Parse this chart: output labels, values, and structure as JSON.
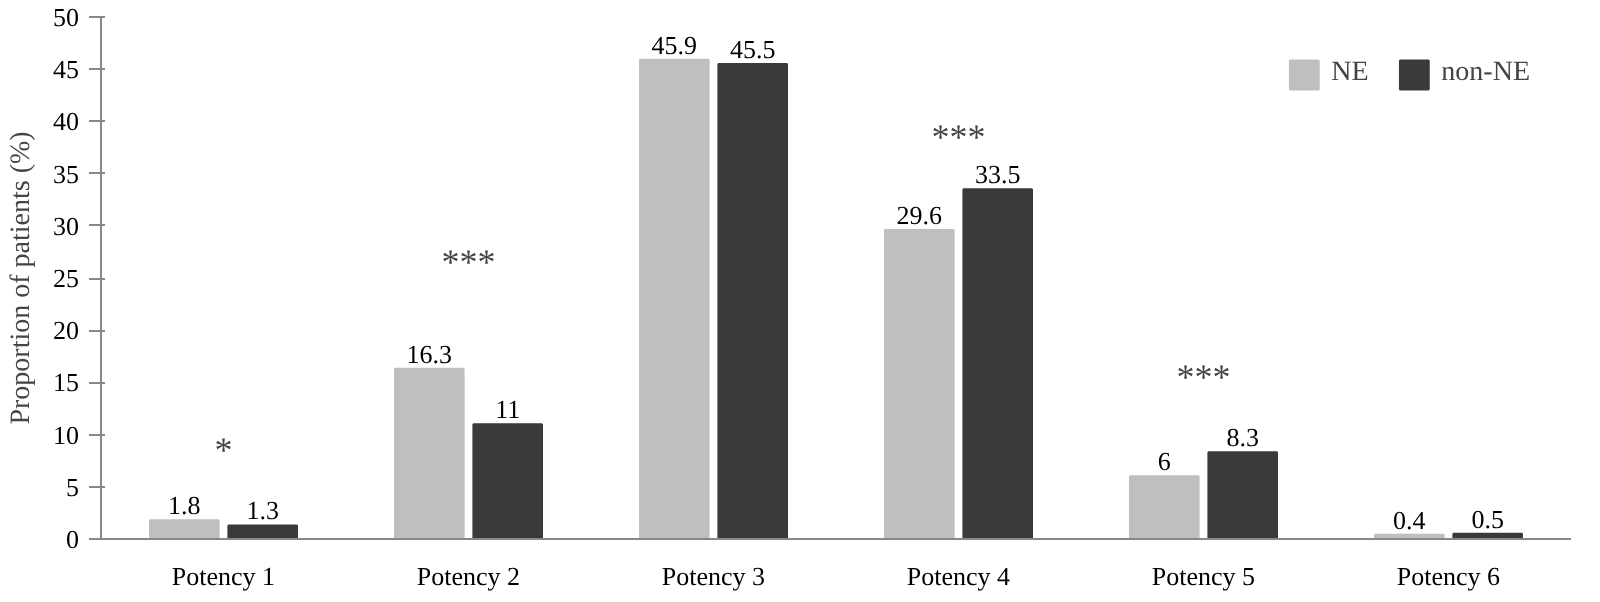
{
  "chart_data": {
    "type": "bar",
    "ylabel": "Proportion of patients (%)",
    "categories": [
      "Potency 1",
      "Potency 2",
      "Potency 3",
      "Potency 4",
      "Potency 5",
      "Potency 6"
    ],
    "series": [
      {
        "name": "NE",
        "color": "#bfbfbf",
        "values": [
          1.8,
          16.3,
          45.9,
          29.6,
          6,
          0.4
        ]
      },
      {
        "name": "non-NE",
        "color": "#3a3a3a",
        "values": [
          1.3,
          11,
          45.5,
          33.5,
          8.3,
          0.5
        ]
      }
    ],
    "ylim": [
      0,
      50
    ],
    "yticks": [
      0,
      5,
      10,
      15,
      20,
      25,
      30,
      35,
      40,
      45,
      50
    ],
    "data_labels": true,
    "legend": "top right",
    "grid": false,
    "annotations": [
      "*",
      "***",
      "***",
      "***"
    ]
  }
}
